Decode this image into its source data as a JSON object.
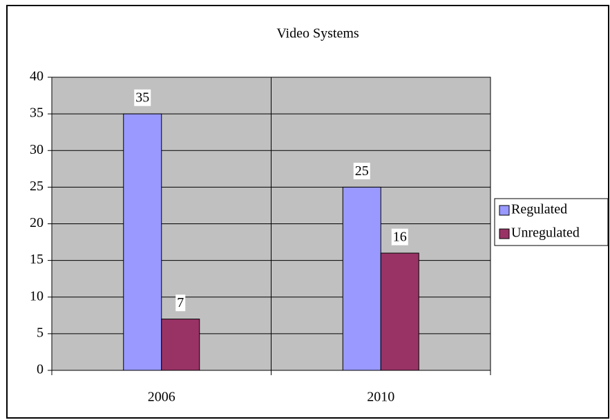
{
  "chart_data": {
    "type": "bar",
    "title": "Video Systems",
    "categories": [
      "2006",
      "2010"
    ],
    "series": [
      {
        "name": "Regulated",
        "color": "#9999ff",
        "values": [
          35,
          25
        ]
      },
      {
        "name": "Unregulated",
        "color": "#993366",
        "values": [
          7,
          16
        ]
      }
    ],
    "ylim": [
      0,
      40
    ],
    "yticks": [
      0,
      5,
      10,
      15,
      20,
      25,
      30,
      35,
      40
    ],
    "grid": true,
    "legend": "right",
    "plot_background": "#c0c0c0"
  }
}
